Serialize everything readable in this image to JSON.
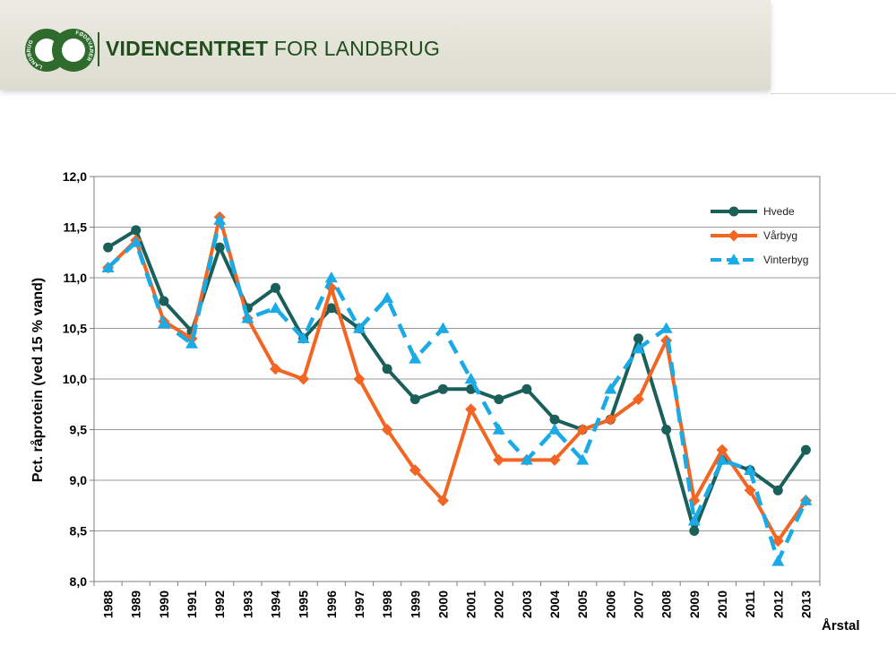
{
  "header": {
    "brand_bold": "VIDENCENTRET",
    "brand_rest": " FOR LANDBRUG",
    "logo_left": "LANDBRUG",
    "logo_right": "FØDEVARER",
    "brand_color": "#1f4d1d"
  },
  "chart_data": {
    "type": "line",
    "title": "",
    "ylabel": "Pct. råprotein (ved 15 % vand)",
    "xlabel": "Årstal",
    "ylim": [
      8.0,
      12.0
    ],
    "y_ticks": [
      "8,0",
      "8,5",
      "9,0",
      "9,5",
      "10,0",
      "10,5",
      "11,0",
      "11,5",
      "12,0"
    ],
    "categories": [
      "1988",
      "1989",
      "1990",
      "1991",
      "1992",
      "1993",
      "1994",
      "1995",
      "1996",
      "1997",
      "1998",
      "1999",
      "2000",
      "2001",
      "2002",
      "2003",
      "2004",
      "2005",
      "2006",
      "2007",
      "2008",
      "2009",
      "2010",
      "2011",
      "2012",
      "2013"
    ],
    "legend_position": "top-right",
    "grid": true,
    "series": [
      {
        "name": "Hvede",
        "color": "#1a5f5a",
        "dash": false,
        "marker": "circle",
        "values": [
          11.3,
          11.47,
          10.77,
          10.47,
          11.3,
          10.7,
          10.9,
          10.4,
          10.7,
          10.5,
          10.1,
          9.8,
          9.9,
          9.9,
          9.8,
          9.9,
          9.6,
          9.5,
          9.6,
          10.4,
          9.5,
          8.5,
          9.2,
          9.1,
          8.9,
          9.3
        ]
      },
      {
        "name": "Vårbyg",
        "color": "#f26522",
        "dash": false,
        "marker": "diamond",
        "values": [
          11.1,
          11.37,
          10.57,
          10.4,
          11.6,
          10.6,
          10.1,
          10.0,
          10.9,
          10.0,
          9.5,
          9.1,
          8.8,
          9.7,
          9.2,
          9.2,
          9.2,
          9.5,
          9.6,
          9.8,
          10.38,
          8.8,
          9.3,
          8.9,
          8.4,
          8.8
        ]
      },
      {
        "name": "Vinterbyg",
        "color": "#1aaae6",
        "dash": true,
        "marker": "triangle",
        "values": [
          11.1,
          11.35,
          10.55,
          10.35,
          11.57,
          10.6,
          10.7,
          10.4,
          11.0,
          10.5,
          10.8,
          10.2,
          10.5,
          10.0,
          9.5,
          9.2,
          9.5,
          9.2,
          9.9,
          10.3,
          10.5,
          8.6,
          9.2,
          9.1,
          8.2,
          8.8
        ]
      }
    ]
  }
}
